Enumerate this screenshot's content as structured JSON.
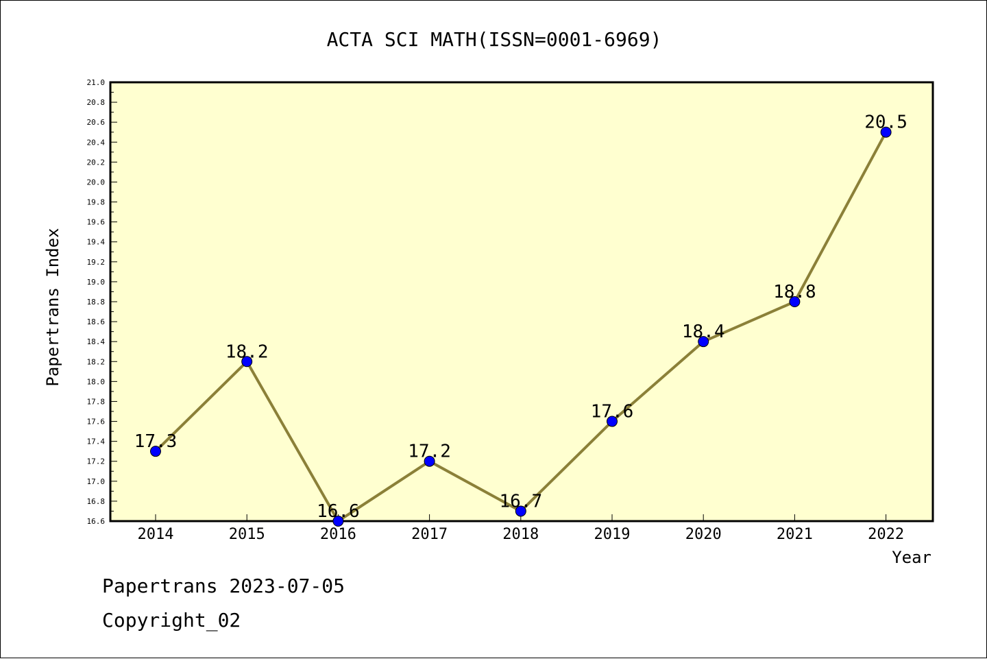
{
  "chart_data": {
    "type": "line",
    "title": "ACTA SCI MATH(ISSN=0001-6969)",
    "xlabel": "Year",
    "ylabel": "Papertrans Index",
    "categories": [
      "2014",
      "2015",
      "2016",
      "2017",
      "2018",
      "2019",
      "2020",
      "2021",
      "2022"
    ],
    "values": [
      17.3,
      18.2,
      16.6,
      17.2,
      16.7,
      17.6,
      18.4,
      18.8,
      20.5
    ],
    "data_labels": [
      "17.3",
      "18.2",
      "16.6",
      "17.2",
      "16.7",
      "17.6",
      "18.4",
      "18.8",
      "20.5"
    ],
    "ylim": [
      16.6,
      21.0
    ],
    "ytick_labels": [
      "16.6",
      "16.8",
      "17.0",
      "17.2",
      "17.4",
      "17.6",
      "17.8",
      "18.0",
      "18.2",
      "18.4",
      "18.6",
      "18.8",
      "19.0",
      "19.2",
      "19.4",
      "19.6",
      "19.8",
      "20.0",
      "20.2",
      "20.4",
      "20.6",
      "20.8",
      "21.0"
    ],
    "grid": false,
    "legend": "none",
    "colors": {
      "plot_background": "#ffffd0",
      "line": "#8b8038",
      "marker": "#0000ff"
    }
  },
  "footer": {
    "line1": "Papertrans 2023-07-05",
    "line2": "Copyright_02"
  }
}
